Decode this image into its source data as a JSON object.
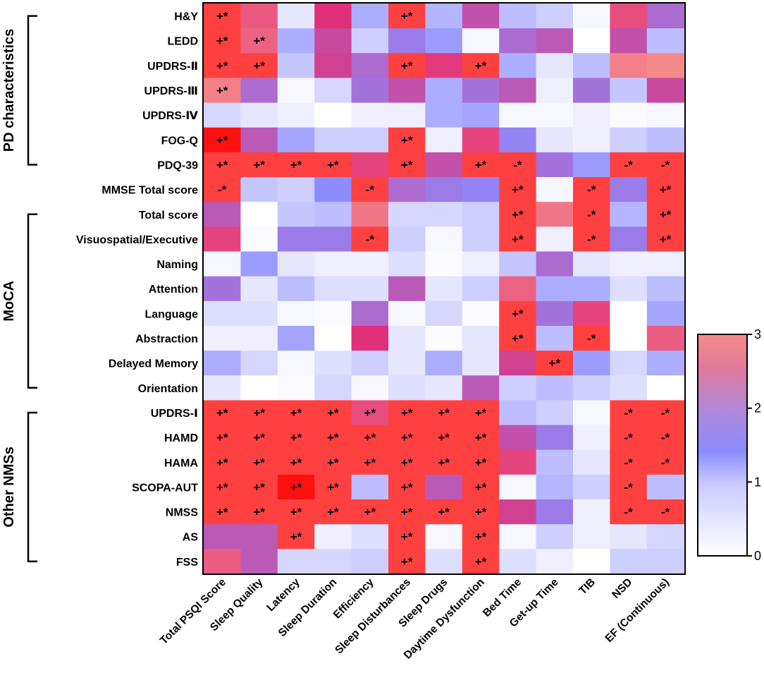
{
  "chart_data": {
    "type": "heatmap",
    "columns": [
      "Total PSQI Score",
      "Sleep Quality",
      "Latency",
      "Sleep Duration",
      "Efficiency",
      "Sleep Disturbances",
      "Sleep Drugs",
      "Daytime Dysfunction",
      "Bed Time",
      "Get-up Time",
      "TIB",
      "NSD",
      "EF (Continuous)"
    ],
    "rows": [
      "H&Y",
      "LEDD",
      "UPDRS-Ⅱ",
      "UPDRS-Ⅲ",
      "UPDRS-Ⅳ",
      "FOG-Q",
      "PDQ-39",
      "MMSE  Total score",
      "Total score",
      "Visuospatial/Executive",
      "Naming",
      "Attention",
      "Language",
      "Abstraction",
      "Delayed Memory",
      "Orientation",
      "UPDRS-Ⅰ",
      "HAMD",
      "HAMA",
      "SCOPA-AUT",
      "NMSS",
      "AS",
      "FSS"
    ],
    "groups": [
      {
        "label": "PD characteristics",
        "first_row": 0,
        "last_row": 6
      },
      {
        "label": "MoCA",
        "first_row": 8,
        "last_row": 15
      },
      {
        "label": "Other NMSs",
        "first_row": 16,
        "last_row": 22
      }
    ],
    "values": [
      [
        3.5,
        2.9,
        0.3,
        2.5,
        1.0,
        3.5,
        0.9,
        2.1,
        0.8,
        0.6,
        0.1,
        2.8,
        1.8
      ],
      [
        3.5,
        3.0,
        1.0,
        2.2,
        0.6,
        1.6,
        1.2,
        0.1,
        1.8,
        2.0,
        0.0,
        2.1,
        0.8
      ],
      [
        3.5,
        3.5,
        0.7,
        2.3,
        1.8,
        3.5,
        2.6,
        3.5,
        1.0,
        0.3,
        0.8,
        3.3,
        3.4
      ],
      [
        3.3,
        1.8,
        0.1,
        0.5,
        1.7,
        2.1,
        1.0,
        1.7,
        2.0,
        0.2,
        1.7,
        0.7,
        2.2
      ],
      [
        0.5,
        0.3,
        0.2,
        0.0,
        0.2,
        0.2,
        1.0,
        1.1,
        0.1,
        0.1,
        0.2,
        0.05,
        0.1
      ],
      [
        3.8,
        2.0,
        1.1,
        0.6,
        0.6,
        3.5,
        0.2,
        2.7,
        1.5,
        0.3,
        0.2,
        0.6,
        0.8
      ],
      [
        3.5,
        3.5,
        3.5,
        3.5,
        2.7,
        3.5,
        2.1,
        3.5,
        3.5,
        1.7,
        1.2,
        3.5,
        3.5
      ],
      [
        3.5,
        0.7,
        0.6,
        1.4,
        3.5,
        1.8,
        1.6,
        1.5,
        3.5,
        0.1,
        3.5,
        1.6,
        3.5
      ],
      [
        2.0,
        0.0,
        0.7,
        0.8,
        3.2,
        0.5,
        0.5,
        0.6,
        3.5,
        3.2,
        3.5,
        0.9,
        3.6
      ],
      [
        2.7,
        0.05,
        1.6,
        1.6,
        3.5,
        0.6,
        0.1,
        0.6,
        3.5,
        0.2,
        3.5,
        1.6,
        3.5
      ],
      [
        0.1,
        1.2,
        0.3,
        0.2,
        0.2,
        0.4,
        0.05,
        0.2,
        0.7,
        1.8,
        0.3,
        0.2,
        0.2
      ],
      [
        1.7,
        0.3,
        0.8,
        0.4,
        0.4,
        2.0,
        0.3,
        0.6,
        3.0,
        1.0,
        1.0,
        0.4,
        0.8
      ],
      [
        0.4,
        0.4,
        0.1,
        0.05,
        1.8,
        0.1,
        0.5,
        0.05,
        3.5,
        1.7,
        2.7,
        0.0,
        1.1
      ],
      [
        0.2,
        0.2,
        1.1,
        0.0,
        2.5,
        0.3,
        0.05,
        0.3,
        3.5,
        0.8,
        3.5,
        0.0,
        2.95
      ],
      [
        1.0,
        0.5,
        0.1,
        0.4,
        0.6,
        0.3,
        1.0,
        0.3,
        2.3,
        3.7,
        1.2,
        0.5,
        1.0
      ],
      [
        0.3,
        0.0,
        0.05,
        0.5,
        0.1,
        0.4,
        0.3,
        2.0,
        0.6,
        0.8,
        0.6,
        0.4,
        0.0
      ],
      [
        3.5,
        3.5,
        3.5,
        3.5,
        2.8,
        3.5,
        3.5,
        3.5,
        0.8,
        0.6,
        0.1,
        3.5,
        3.5
      ],
      [
        3.5,
        3.5,
        3.5,
        3.5,
        3.5,
        3.5,
        3.5,
        3.5,
        2.1,
        1.6,
        0.2,
        3.5,
        3.5
      ],
      [
        3.5,
        3.5,
        3.5,
        3.5,
        3.5,
        3.5,
        3.5,
        3.5,
        2.7,
        0.8,
        0.3,
        3.5,
        3.5
      ],
      [
        3.5,
        3.5,
        3.8,
        3.5,
        0.8,
        3.5,
        2.0,
        3.5,
        0.1,
        0.9,
        0.6,
        3.5,
        0.8
      ],
      [
        3.5,
        3.5,
        3.5,
        3.5,
        3.5,
        3.5,
        3.5,
        3.5,
        2.3,
        1.6,
        0.2,
        3.5,
        3.5
      ],
      [
        2.0,
        2.0,
        3.5,
        0.2,
        0.4,
        3.5,
        0.1,
        3.5,
        0.1,
        0.6,
        0.2,
        0.3,
        0.5
      ],
      [
        2.95,
        2.0,
        0.5,
        0.5,
        0.6,
        3.5,
        0.4,
        3.5,
        0.4,
        0.2,
        0.0,
        0.6,
        0.6
      ]
    ],
    "markers": [
      [
        "+*",
        "",
        "",
        "",
        "",
        "+*",
        "",
        "",
        "",
        "",
        "",
        "",
        ""
      ],
      [
        "+*",
        "+*",
        "",
        "",
        "",
        "",
        "",
        "",
        "",
        "",
        "",
        "",
        ""
      ],
      [
        "+*",
        "+*",
        "",
        "",
        "",
        "+*",
        "",
        "+*",
        "",
        "",
        "",
        "",
        ""
      ],
      [
        "+*",
        "",
        "",
        "",
        "",
        "",
        "",
        "",
        "",
        "",
        "",
        "",
        ""
      ],
      [
        "",
        "",
        "",
        "",
        "",
        "",
        "",
        "",
        "",
        "",
        "",
        "",
        ""
      ],
      [
        "+*",
        "",
        "",
        "",
        "",
        "+*",
        "",
        "",
        "",
        "",
        "",
        "",
        ""
      ],
      [
        "+*",
        "+*",
        "+*",
        "+*",
        "",
        "+*",
        "",
        "+*",
        "-*",
        "",
        "",
        "-*",
        "-*"
      ],
      [
        "-*",
        "",
        "",
        "",
        "-*",
        "",
        "",
        "",
        "+*",
        "",
        "-*",
        "",
        "+*"
      ],
      [
        "",
        "",
        "",
        "",
        "",
        "",
        "",
        "",
        "+*",
        "",
        "-*",
        "",
        "+*"
      ],
      [
        "",
        "",
        "",
        "",
        "-*",
        "",
        "",
        "",
        "+*",
        "",
        "-*",
        "",
        "+*"
      ],
      [
        "",
        "",
        "",
        "",
        "",
        "",
        "",
        "",
        "",
        "",
        "",
        "",
        ""
      ],
      [
        "",
        "",
        "",
        "",
        "",
        "",
        "",
        "",
        "",
        "",
        "",
        "",
        ""
      ],
      [
        "",
        "",
        "",
        "",
        "",
        "",
        "",
        "",
        "+*",
        "",
        "",
        "",
        ""
      ],
      [
        "",
        "",
        "",
        "",
        "",
        "",
        "",
        "",
        "+*",
        "",
        "-*",
        "",
        ""
      ],
      [
        "",
        "",
        "",
        "",
        "",
        "",
        "",
        "",
        "",
        "+*",
        "",
        "",
        ""
      ],
      [
        "",
        "",
        "",
        "",
        "",
        "",
        "",
        "",
        "",
        "",
        "",
        "",
        ""
      ],
      [
        "+*",
        "+*",
        "+*",
        "+*",
        "+*",
        "+*",
        "+*",
        "+*",
        "",
        "",
        "",
        "-*",
        "-*"
      ],
      [
        "+*",
        "+*",
        "+*",
        "+*",
        "+*",
        "+*",
        "+*",
        "+*",
        "",
        "",
        "",
        "-*",
        "-*"
      ],
      [
        "+*",
        "+*",
        "+*",
        "+*",
        "+*",
        "+*",
        "+*",
        "+*",
        "",
        "",
        "",
        "-*",
        "-*"
      ],
      [
        "+*",
        "+*",
        "+*",
        "+*",
        "",
        "+*",
        "",
        "+*",
        "",
        "",
        "",
        "-*",
        ""
      ],
      [
        "+*",
        "+*",
        "+*",
        "+*",
        "+*",
        "+*",
        "+*",
        "+*",
        "",
        "",
        "",
        "-*",
        "-*"
      ],
      [
        "",
        "",
        "+*",
        "",
        "",
        "+*",
        "",
        "+*",
        "",
        "",
        "",
        "",
        ""
      ],
      [
        "",
        "",
        "",
        "",
        "",
        "+*",
        "",
        "+*",
        "",
        "",
        "",
        "",
        ""
      ]
    ],
    "colorbar": {
      "min": 0,
      "max": 3,
      "ticks": [
        "0",
        "1",
        "2",
        "3"
      ]
    },
    "colors": {
      "low": "#ffffff",
      "mid": "#8c8cff",
      "high": "#e0307a",
      "top": "#f58a8a",
      "sig": "#ff4040",
      "strong": "#ff1010"
    }
  }
}
